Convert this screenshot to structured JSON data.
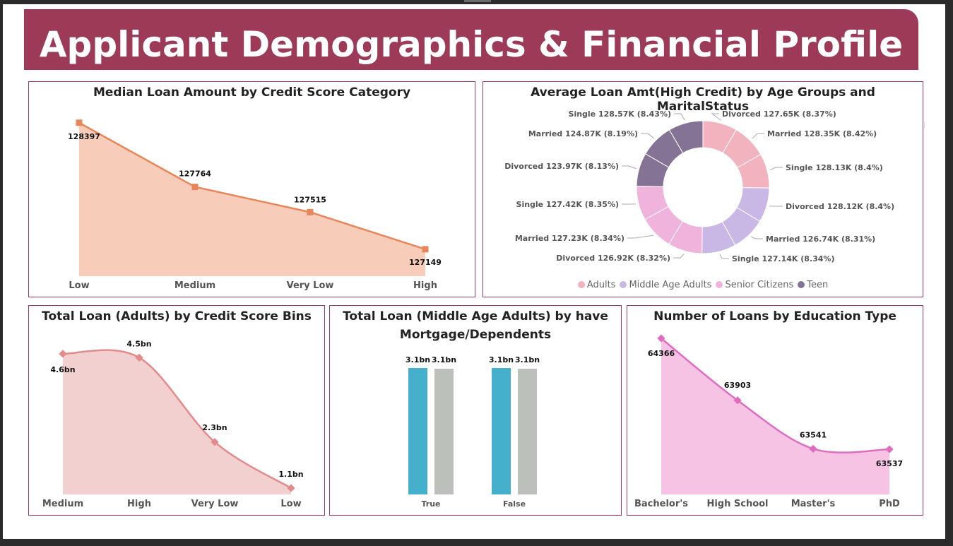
{
  "header": {
    "title": "Applicant Demographics & Financial Profile"
  },
  "chart_data": [
    {
      "id": "median_loan",
      "type": "area",
      "title": "Median Loan Amount by Credit Score Category",
      "categories": [
        "Low",
        "Medium",
        "Very Low",
        "High"
      ],
      "values": [
        128397,
        127764,
        127515,
        127149
      ],
      "labels": [
        "128397",
        "127764",
        "127515",
        "127149"
      ],
      "ylim": [
        126500,
        128500
      ],
      "color": "#e8865a",
      "fill": "#f7cdb9"
    },
    {
      "id": "avg_loan_donut",
      "type": "pie",
      "title": "Average Loan Amt(High Credit) by Age Groups and MaritalStatus",
      "slices": [
        {
          "group": "Adults",
          "label": "Divorced 127.65K (8.37%)",
          "value": 8.37
        },
        {
          "group": "Adults",
          "label": "Married 128.35K (8.42%)",
          "value": 8.42
        },
        {
          "group": "Adults",
          "label": "Single 128.13K (8.4%)",
          "value": 8.4
        },
        {
          "group": "Middle Age Adults",
          "label": "Divorced 128.12K (8.4%)",
          "value": 8.4
        },
        {
          "group": "Middle Age Adults",
          "label": "Married 126.74K (8.31%)",
          "value": 8.31
        },
        {
          "group": "Middle Age Adults",
          "label": "Single 127.14K (8.34%)",
          "value": 8.34
        },
        {
          "group": "Senior Citizens",
          "label": "Divorced 126.92K (8.32%)",
          "value": 8.32
        },
        {
          "group": "Senior Citizens",
          "label": "Married 127.23K (8.34%)",
          "value": 8.34
        },
        {
          "group": "Senior Citizens",
          "label": "Single 127.42K (8.35%)",
          "value": 8.35
        },
        {
          "group": "Teen",
          "label": "Divorced 123.97K (8.13%)",
          "value": 8.13
        },
        {
          "group": "Teen",
          "label": "Married 124.87K (8.19%)",
          "value": 8.19
        },
        {
          "group": "Teen",
          "label": "Single 128.57K (8.43%)",
          "value": 8.43
        }
      ],
      "legend": [
        {
          "name": "Adults",
          "color": "#f2b3bf"
        },
        {
          "name": "Middle Age Adults",
          "color": "#c9b8e6"
        },
        {
          "name": "Senior Citizens",
          "color": "#f0b3dc"
        },
        {
          "name": "Teen",
          "color": "#857396"
        }
      ],
      "legend_position": "bottom"
    },
    {
      "id": "total_loan_adults",
      "type": "area",
      "title": "Total Loan (Adults) by Credit Score Bins",
      "categories": [
        "Medium",
        "High",
        "Very Low",
        "Low"
      ],
      "values": [
        4.6,
        4.5,
        2.3,
        1.1
      ],
      "labels": [
        "4.6bn",
        "4.5bn",
        "2.3bn",
        "1.1bn"
      ],
      "ylim": [
        1.1,
        4.8
      ],
      "color": "#e38a8a",
      "fill": "#f3d0d0"
    },
    {
      "id": "total_loan_middle",
      "type": "bar",
      "title_line1": "Total Loan (Middle Age Adults) by have",
      "title_line2": "Mortgage/Dependents",
      "categories": [
        "True",
        "False"
      ],
      "series": [
        {
          "values": [
            3.1,
            3.1
          ],
          "labels": [
            "3.1bn",
            "3.1bn"
          ],
          "color": "#45b0cc"
        },
        {
          "values": [
            3.1,
            3.1
          ],
          "labels": [
            "3.1bn",
            "3.1bn"
          ],
          "color": "#bcc0ba"
        }
      ],
      "ylim": [
        0,
        3.1
      ]
    },
    {
      "id": "loans_by_education",
      "type": "area",
      "title": "Number of Loans by Education Type",
      "categories": [
        "Bachelor's",
        "High School",
        "Master's",
        "PhD"
      ],
      "values": [
        64366,
        63903,
        63541,
        63537
      ],
      "labels": [
        "64366",
        "63903",
        "63541",
        "63537"
      ],
      "ylim": [
        63200,
        64366
      ],
      "color": "#e06cc0",
      "fill": "#f6c3e5"
    }
  ]
}
